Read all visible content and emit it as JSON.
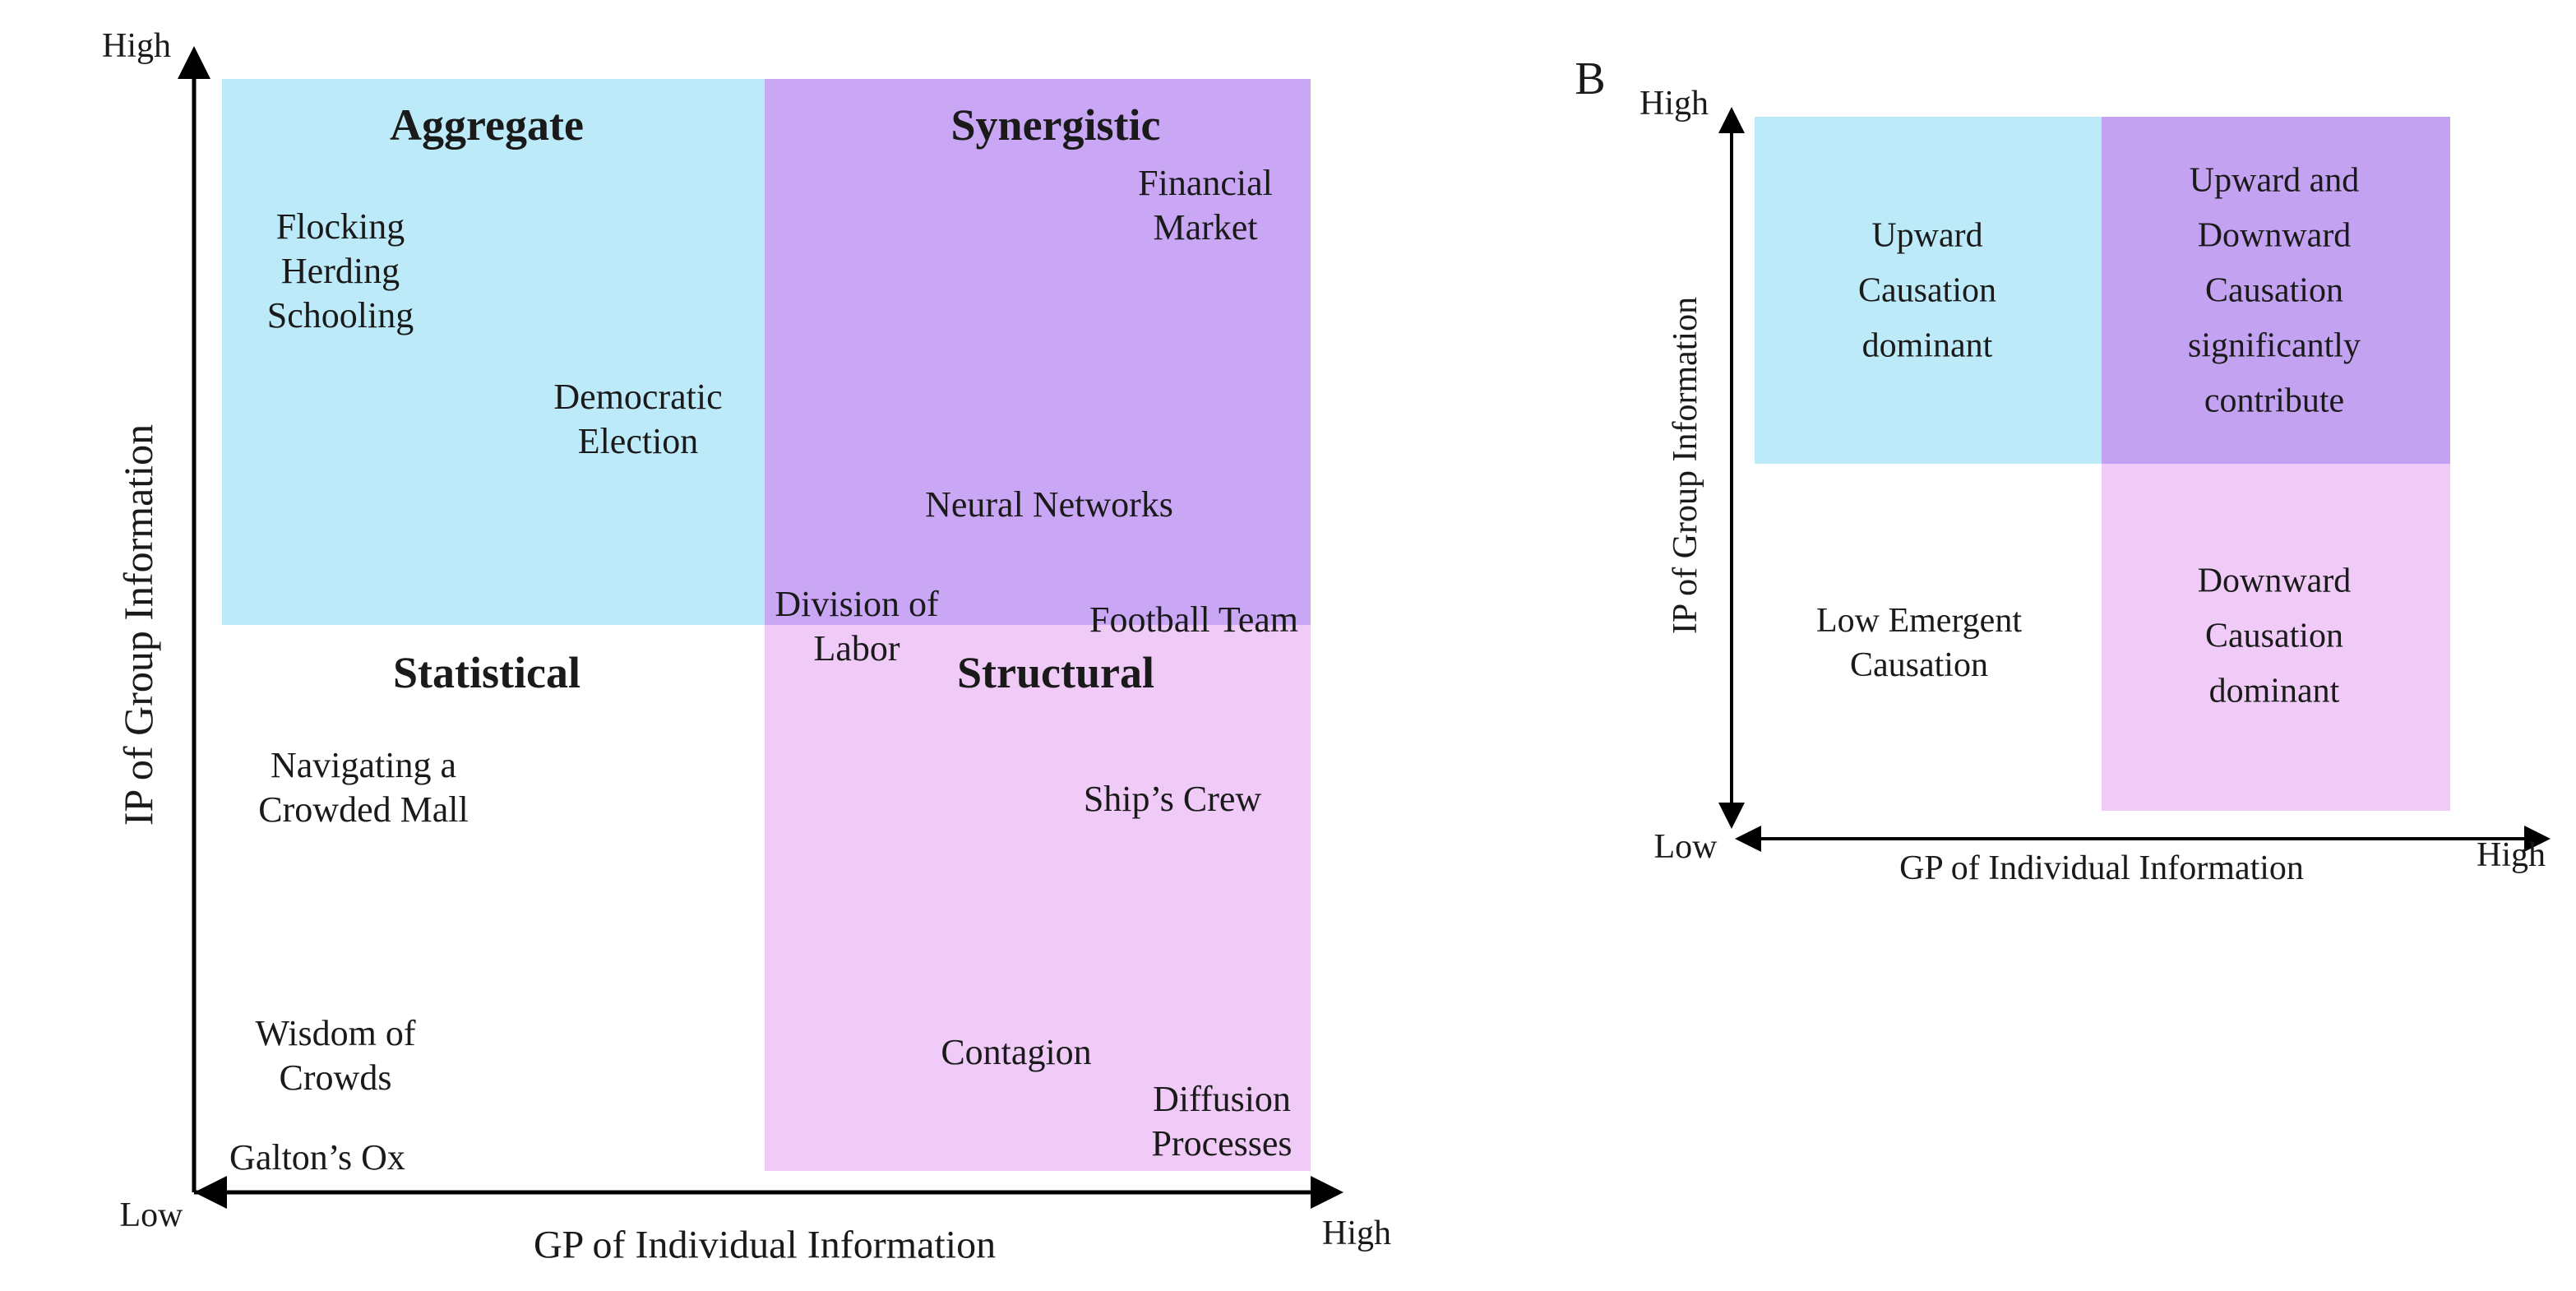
{
  "colors": {
    "aggregate": "#bdeaf8",
    "synergistic": "#c9a7f5",
    "structural": "#f0cbf8",
    "b_synergy": "#c3a2f2"
  },
  "panel_a": {
    "y_axis": {
      "label": "IP of Group Information",
      "high": "High",
      "low": "Low"
    },
    "x_axis": {
      "label": "GP of Individual Information",
      "high": "High"
    },
    "quadrants": {
      "aggregate": "Aggregate",
      "synergistic": "Synergistic",
      "statistical": "Statistical",
      "structural": "Structural"
    },
    "items": {
      "flocking": "Flocking\nHerding\nSchooling",
      "democratic": "Democratic\nElection",
      "financial": "Financial\nMarket",
      "neural": "Neural Networks",
      "division": "Division of\nLabor",
      "football": "Football Team",
      "mall": "Navigating a\nCrowded Mall",
      "ship": "Ship’s Crew",
      "wisdom": "Wisdom of\nCrowds",
      "contagion": "Contagion",
      "diffusion": "Diffusion\nProcesses",
      "galton": "Galton’s Ox"
    }
  },
  "panel_b": {
    "panel_label": "B",
    "y_axis": {
      "label": "IP of Group Information",
      "high": "High"
    },
    "x_axis": {
      "label": "GP of Individual Information",
      "high": "High",
      "low": "Low"
    },
    "quadrants": {
      "upper_left": "Upward\nCausation\ndominant",
      "upper_right": "Upward and\nDownward\nCausation\nsignificantly\ncontribute",
      "lower_left": "Low Emergent\nCausation",
      "lower_right": "Downward\nCausation\ndominant"
    }
  }
}
